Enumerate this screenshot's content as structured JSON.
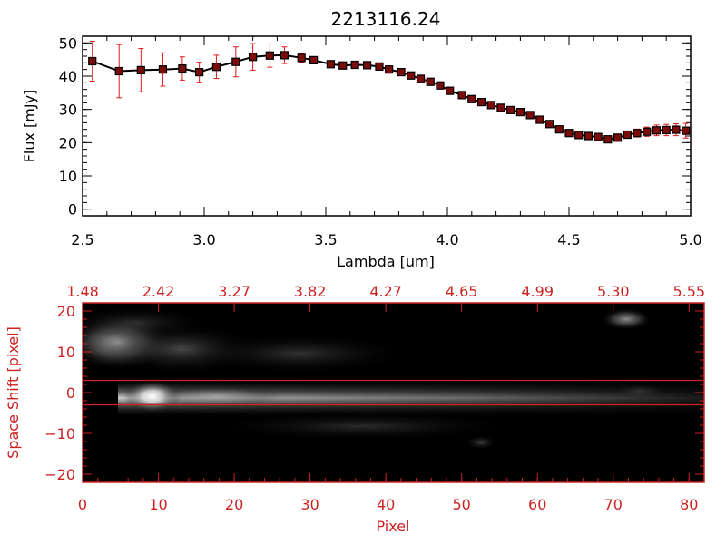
{
  "colors": {
    "axis_black": "#000000",
    "accent_red": "#cc2222",
    "marker_fill": "#7a0c0c",
    "errorbar": "#e01818",
    "background": "#ffffff",
    "image_background": "#000000"
  },
  "chart_data": [
    {
      "type": "scatter",
      "title": "2213116.24",
      "xlabel": "Lambda [um]",
      "ylabel": "Flux [mJy]",
      "xlim": [
        2.5,
        5.0
      ],
      "ylim": [
        -2,
        52
      ],
      "x_ticks": [
        "2.5",
        "3.0",
        "3.5",
        "4.0",
        "4.5",
        "5.0"
      ],
      "x_tick_values": [
        2.5,
        3.0,
        3.5,
        4.0,
        4.5,
        5.0
      ],
      "y_ticks": [
        "0",
        "10",
        "20",
        "30",
        "40",
        "50"
      ],
      "y_tick_values": [
        0,
        10,
        20,
        30,
        40,
        50
      ],
      "grid": false,
      "legend": "none",
      "series": [
        {
          "x": [
            2.54,
            2.65,
            2.74,
            2.83,
            2.91,
            2.98,
            3.05,
            3.13,
            3.2,
            3.27,
            3.33,
            3.4,
            3.45,
            3.52,
            3.57,
            3.62,
            3.67,
            3.72,
            3.76,
            3.81,
            3.85,
            3.89,
            3.93,
            3.97,
            4.01,
            4.06,
            4.1,
            4.14,
            4.18,
            4.22,
            4.26,
            4.3,
            4.34,
            4.38,
            4.42,
            4.46,
            4.5,
            4.54,
            4.58,
            4.62,
            4.66,
            4.7,
            4.74,
            4.78,
            4.82,
            4.86,
            4.9,
            4.94,
            4.98
          ],
          "y": [
            44.5,
            41.5,
            41.8,
            42.0,
            42.3,
            41.2,
            42.8,
            44.3,
            45.8,
            46.2,
            46.3,
            45.5,
            44.8,
            43.6,
            43.2,
            43.4,
            43.3,
            42.9,
            42.0,
            41.2,
            40.2,
            39.2,
            38.3,
            37.2,
            35.6,
            34.3,
            33.1,
            32.2,
            31.3,
            30.5,
            29.8,
            29.2,
            28.3,
            26.9,
            25.6,
            24.0,
            22.9,
            22.3,
            22.0,
            21.7,
            21.0,
            21.5,
            22.4,
            22.9,
            23.3,
            23.7,
            23.8,
            23.9,
            23.6
          ],
          "yerr": [
            6.0,
            8.0,
            6.5,
            5.0,
            3.5,
            3.0,
            3.5,
            4.5,
            4.0,
            3.5,
            2.5,
            1.3,
            1.0,
            0.9,
            0.8,
            0.8,
            0.8,
            0.7,
            0.7,
            0.7,
            0.7,
            0.7,
            0.7,
            0.7,
            0.7,
            0.7,
            0.7,
            0.7,
            0.7,
            0.7,
            0.7,
            0.7,
            0.7,
            0.7,
            0.7,
            0.7,
            0.7,
            0.7,
            0.7,
            0.7,
            0.8,
            0.9,
            1.0,
            1.2,
            1.4,
            1.6,
            1.7,
            1.8,
            2.2
          ]
        }
      ]
    },
    {
      "type": "heatmap",
      "xlabel": "Pixel",
      "ylabel": "Space Shift [pixel]",
      "xlim": [
        0,
        82
      ],
      "ylim": [
        -22,
        22
      ],
      "x_ticks": [
        "0",
        "10",
        "20",
        "30",
        "40",
        "50",
        "60",
        "70",
        "80"
      ],
      "x_tick_values": [
        0,
        10,
        20,
        30,
        40,
        50,
        60,
        70,
        80
      ],
      "y_ticks": [
        "−20",
        "−10",
        "0",
        "10",
        "20"
      ],
      "y_tick_values": [
        -20,
        -10,
        0,
        10,
        20
      ],
      "top_axis_label_values": [
        0,
        10,
        20,
        30,
        40,
        50,
        60,
        70,
        80
      ],
      "top_axis_labels": [
        "1.48",
        "2.42",
        "3.27",
        "3.82",
        "4.27",
        "4.65",
        "4.99",
        "5.30",
        "5.55"
      ],
      "extraction_window_lines_y": [
        3,
        -3
      ],
      "colormap": "grayscale",
      "bright_features": [
        {
          "x": 9,
          "y": 0,
          "peak": 1.0
        },
        {
          "x": 3,
          "y": 13,
          "peak": 0.55
        },
        {
          "x": 70,
          "y": 18,
          "peak": 0.45
        }
      ]
    }
  ]
}
